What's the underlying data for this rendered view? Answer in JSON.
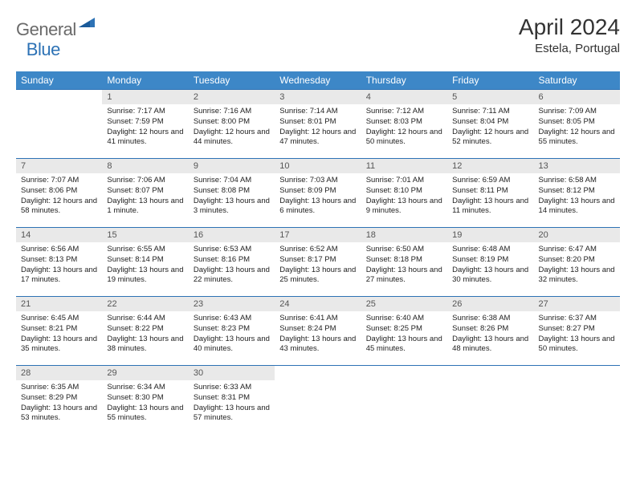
{
  "logo": {
    "part1": "General",
    "part2": "Blue"
  },
  "title": "April 2024",
  "location": "Estela, Portugal",
  "colors": {
    "header_bg": "#3d87c7",
    "header_text": "#ffffff",
    "daynum_bg": "#e9e9e9",
    "daynum_text": "#555555",
    "border": "#2d72b5",
    "body_text": "#222222",
    "logo_gray": "#6a6a6a",
    "logo_blue": "#2d72b5"
  },
  "dayNames": [
    "Sunday",
    "Monday",
    "Tuesday",
    "Wednesday",
    "Thursday",
    "Friday",
    "Saturday"
  ],
  "weeks": [
    {
      "nums": [
        "",
        "1",
        "2",
        "3",
        "4",
        "5",
        "6"
      ],
      "cells": [
        {
          "sunrise": "",
          "sunset": "",
          "daylight": ""
        },
        {
          "sunrise": "Sunrise: 7:17 AM",
          "sunset": "Sunset: 7:59 PM",
          "daylight": "Daylight: 12 hours and 41 minutes."
        },
        {
          "sunrise": "Sunrise: 7:16 AM",
          "sunset": "Sunset: 8:00 PM",
          "daylight": "Daylight: 12 hours and 44 minutes."
        },
        {
          "sunrise": "Sunrise: 7:14 AM",
          "sunset": "Sunset: 8:01 PM",
          "daylight": "Daylight: 12 hours and 47 minutes."
        },
        {
          "sunrise": "Sunrise: 7:12 AM",
          "sunset": "Sunset: 8:03 PM",
          "daylight": "Daylight: 12 hours and 50 minutes."
        },
        {
          "sunrise": "Sunrise: 7:11 AM",
          "sunset": "Sunset: 8:04 PM",
          "daylight": "Daylight: 12 hours and 52 minutes."
        },
        {
          "sunrise": "Sunrise: 7:09 AM",
          "sunset": "Sunset: 8:05 PM",
          "daylight": "Daylight: 12 hours and 55 minutes."
        }
      ]
    },
    {
      "nums": [
        "7",
        "8",
        "9",
        "10",
        "11",
        "12",
        "13"
      ],
      "cells": [
        {
          "sunrise": "Sunrise: 7:07 AM",
          "sunset": "Sunset: 8:06 PM",
          "daylight": "Daylight: 12 hours and 58 minutes."
        },
        {
          "sunrise": "Sunrise: 7:06 AM",
          "sunset": "Sunset: 8:07 PM",
          "daylight": "Daylight: 13 hours and 1 minute."
        },
        {
          "sunrise": "Sunrise: 7:04 AM",
          "sunset": "Sunset: 8:08 PM",
          "daylight": "Daylight: 13 hours and 3 minutes."
        },
        {
          "sunrise": "Sunrise: 7:03 AM",
          "sunset": "Sunset: 8:09 PM",
          "daylight": "Daylight: 13 hours and 6 minutes."
        },
        {
          "sunrise": "Sunrise: 7:01 AM",
          "sunset": "Sunset: 8:10 PM",
          "daylight": "Daylight: 13 hours and 9 minutes."
        },
        {
          "sunrise": "Sunrise: 6:59 AM",
          "sunset": "Sunset: 8:11 PM",
          "daylight": "Daylight: 13 hours and 11 minutes."
        },
        {
          "sunrise": "Sunrise: 6:58 AM",
          "sunset": "Sunset: 8:12 PM",
          "daylight": "Daylight: 13 hours and 14 minutes."
        }
      ]
    },
    {
      "nums": [
        "14",
        "15",
        "16",
        "17",
        "18",
        "19",
        "20"
      ],
      "cells": [
        {
          "sunrise": "Sunrise: 6:56 AM",
          "sunset": "Sunset: 8:13 PM",
          "daylight": "Daylight: 13 hours and 17 minutes."
        },
        {
          "sunrise": "Sunrise: 6:55 AM",
          "sunset": "Sunset: 8:14 PM",
          "daylight": "Daylight: 13 hours and 19 minutes."
        },
        {
          "sunrise": "Sunrise: 6:53 AM",
          "sunset": "Sunset: 8:16 PM",
          "daylight": "Daylight: 13 hours and 22 minutes."
        },
        {
          "sunrise": "Sunrise: 6:52 AM",
          "sunset": "Sunset: 8:17 PM",
          "daylight": "Daylight: 13 hours and 25 minutes."
        },
        {
          "sunrise": "Sunrise: 6:50 AM",
          "sunset": "Sunset: 8:18 PM",
          "daylight": "Daylight: 13 hours and 27 minutes."
        },
        {
          "sunrise": "Sunrise: 6:48 AM",
          "sunset": "Sunset: 8:19 PM",
          "daylight": "Daylight: 13 hours and 30 minutes."
        },
        {
          "sunrise": "Sunrise: 6:47 AM",
          "sunset": "Sunset: 8:20 PM",
          "daylight": "Daylight: 13 hours and 32 minutes."
        }
      ]
    },
    {
      "nums": [
        "21",
        "22",
        "23",
        "24",
        "25",
        "26",
        "27"
      ],
      "cells": [
        {
          "sunrise": "Sunrise: 6:45 AM",
          "sunset": "Sunset: 8:21 PM",
          "daylight": "Daylight: 13 hours and 35 minutes."
        },
        {
          "sunrise": "Sunrise: 6:44 AM",
          "sunset": "Sunset: 8:22 PM",
          "daylight": "Daylight: 13 hours and 38 minutes."
        },
        {
          "sunrise": "Sunrise: 6:43 AM",
          "sunset": "Sunset: 8:23 PM",
          "daylight": "Daylight: 13 hours and 40 minutes."
        },
        {
          "sunrise": "Sunrise: 6:41 AM",
          "sunset": "Sunset: 8:24 PM",
          "daylight": "Daylight: 13 hours and 43 minutes."
        },
        {
          "sunrise": "Sunrise: 6:40 AM",
          "sunset": "Sunset: 8:25 PM",
          "daylight": "Daylight: 13 hours and 45 minutes."
        },
        {
          "sunrise": "Sunrise: 6:38 AM",
          "sunset": "Sunset: 8:26 PM",
          "daylight": "Daylight: 13 hours and 48 minutes."
        },
        {
          "sunrise": "Sunrise: 6:37 AM",
          "sunset": "Sunset: 8:27 PM",
          "daylight": "Daylight: 13 hours and 50 minutes."
        }
      ]
    },
    {
      "nums": [
        "28",
        "29",
        "30",
        "",
        "",
        "",
        ""
      ],
      "cells": [
        {
          "sunrise": "Sunrise: 6:35 AM",
          "sunset": "Sunset: 8:29 PM",
          "daylight": "Daylight: 13 hours and 53 minutes."
        },
        {
          "sunrise": "Sunrise: 6:34 AM",
          "sunset": "Sunset: 8:30 PM",
          "daylight": "Daylight: 13 hours and 55 minutes."
        },
        {
          "sunrise": "Sunrise: 6:33 AM",
          "sunset": "Sunset: 8:31 PM",
          "daylight": "Daylight: 13 hours and 57 minutes."
        },
        {
          "sunrise": "",
          "sunset": "",
          "daylight": ""
        },
        {
          "sunrise": "",
          "sunset": "",
          "daylight": ""
        },
        {
          "sunrise": "",
          "sunset": "",
          "daylight": ""
        },
        {
          "sunrise": "",
          "sunset": "",
          "daylight": ""
        }
      ]
    }
  ]
}
